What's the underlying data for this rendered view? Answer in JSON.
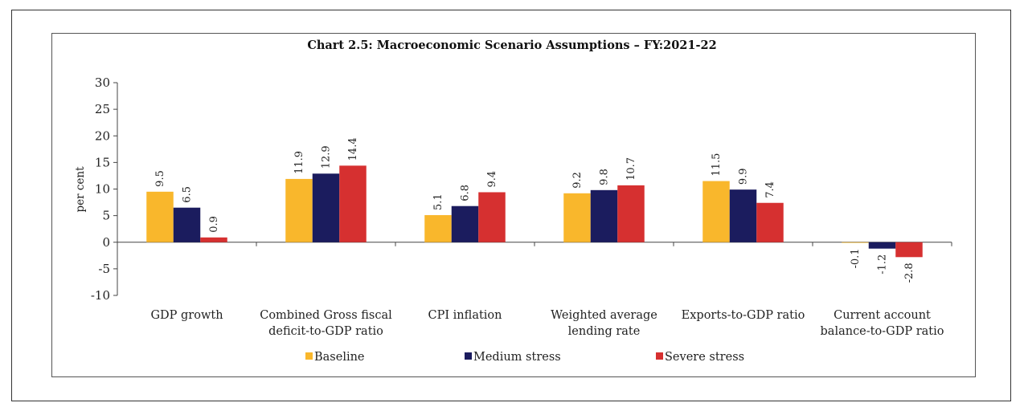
{
  "chart_data": {
    "type": "bar",
    "title": "Chart 2.5: Macroeconomic Scenario Assumptions – FY:2021-22",
    "xlabel": "",
    "ylabel": "per cent",
    "ylim": [
      -10,
      30
    ],
    "yticks": [
      30,
      25,
      20,
      15,
      10,
      5,
      0,
      -5,
      -10
    ],
    "ytick_labels": [
      "30",
      "25",
      "20",
      "15",
      "10",
      "5",
      "0",
      "-5",
      "-10"
    ],
    "categories": [
      [
        "GDP growth"
      ],
      [
        "Combined Gross fiscal",
        "deficit-to-GDP ratio"
      ],
      [
        "CPI inflation"
      ],
      [
        "Weighted average",
        "lending rate"
      ],
      [
        "Exports-to-GDP ratio"
      ],
      [
        "Current account",
        "balance-to-GDP ratio"
      ]
    ],
    "series": [
      {
        "name": "Baseline",
        "color": "#F9B72C",
        "values": [
          9.5,
          11.9,
          5.1,
          9.2,
          11.5,
          -0.1
        ],
        "labels": [
          "9.5",
          "11.9",
          "5.1",
          "9.2",
          "11.5",
          "-0.1"
        ]
      },
      {
        "name": "Medium stress",
        "color": "#1B1C5E",
        "values": [
          6.5,
          12.9,
          6.8,
          9.8,
          9.9,
          -1.2
        ],
        "labels": [
          "6.5",
          "12.9",
          "6.8",
          "9.8",
          "9.9",
          "-1.2"
        ]
      },
      {
        "name": "Severe stress",
        "color": "#D63030",
        "values": [
          0.9,
          14.4,
          9.4,
          10.7,
          7.4,
          -2.8
        ],
        "labels": [
          "0.9",
          "14.4",
          "9.4",
          "10.7",
          "7.4",
          "-2.8"
        ]
      }
    ],
    "legend_position": "bottom",
    "grid": false
  }
}
